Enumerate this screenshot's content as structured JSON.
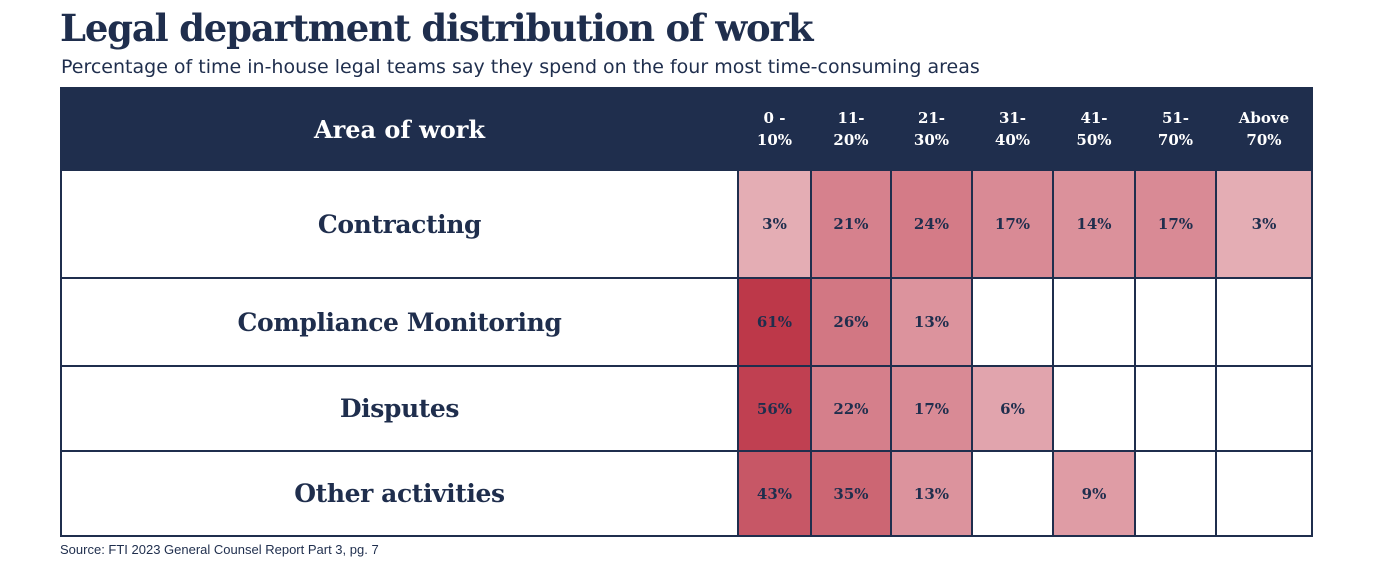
{
  "title": "Legal department distribution of work",
  "subtitle": "Percentage of time in-house legal teams say they spend on the four most time-consuming areas",
  "source": "Source: FTI 2023 General Counsel Report Part 3, pg. 7",
  "colors": {
    "header_bg": "#1f2e4d",
    "text": "#1f2e4d",
    "heat_low": "#e8b8bf",
    "heat_high": "#bd3849"
  },
  "chart_data": {
    "type": "heatmap",
    "row_header": "Area of work",
    "columns": [
      "0 - 10%",
      "11- 20%",
      "21- 30%",
      "31- 40%",
      "41- 50%",
      "51- 70%",
      "Above 70%"
    ],
    "rows": [
      {
        "name": "Contracting",
        "values": [
          3,
          21,
          24,
          17,
          14,
          17,
          3
        ]
      },
      {
        "name": "Compliance Monitoring",
        "values": [
          61,
          26,
          13,
          null,
          null,
          null,
          null
        ]
      },
      {
        "name": "Disputes",
        "values": [
          56,
          22,
          17,
          6,
          null,
          null,
          null
        ]
      },
      {
        "name": "Other activities",
        "values": [
          43,
          35,
          13,
          null,
          9,
          null,
          null
        ]
      }
    ],
    "value_suffix": "%"
  }
}
